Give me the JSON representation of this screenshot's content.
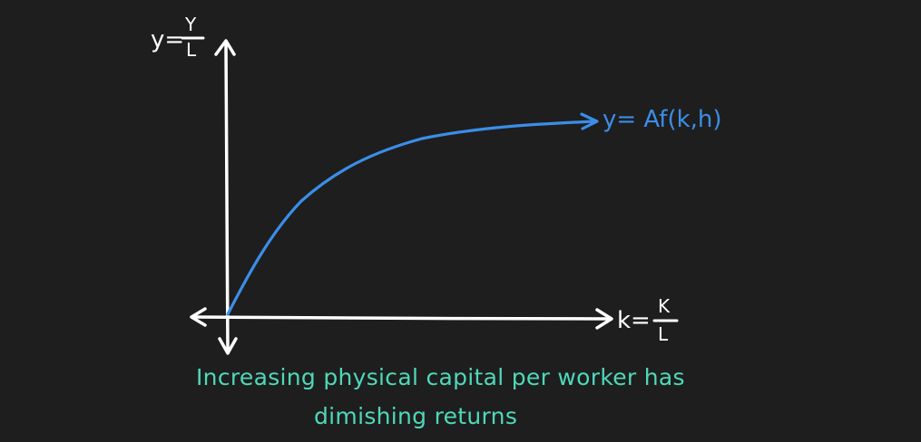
{
  "y_axis_label": {
    "prefix": "y=",
    "numerator": "Y",
    "denominator": "L"
  },
  "x_axis_label": {
    "prefix": "k=",
    "numerator": "K",
    "denominator": "L"
  },
  "curve_label": "y= Af(k,h)",
  "caption": {
    "line1": "Increasing physical capital per worker has",
    "line2": "dimishing returns"
  },
  "colors": {
    "background": "#1e1e1e",
    "axes": "#ffffff",
    "curve": "#3b8ee8",
    "caption": "#4fd8b9"
  }
}
